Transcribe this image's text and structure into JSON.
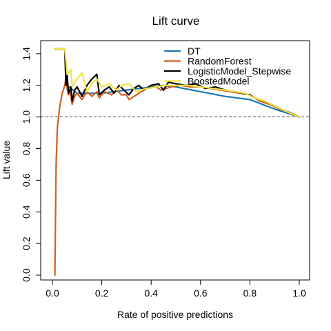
{
  "chart_data": {
    "type": "line",
    "title": "Lift curve",
    "xlabel": "Rate of positive predictions",
    "ylabel": "Lift value",
    "xlim": [
      0.0,
      1.0
    ],
    "ylim": [
      0.0,
      1.43
    ],
    "xticks": [
      0.0,
      0.2,
      0.4,
      0.6,
      0.8,
      1.0
    ],
    "xtick_labels": [
      "0.0",
      "0.2",
      "0.4",
      "0.6",
      "0.8",
      "1.0"
    ],
    "yticks": [
      0.0,
      0.2,
      0.4,
      0.6,
      0.8,
      1.0,
      1.2,
      1.4
    ],
    "ytick_labels": [
      "0.0",
      "0.2",
      "0.4",
      "0.6",
      "0.8",
      "1.0",
      "1.2",
      "1.4"
    ],
    "reference_line": {
      "y": 1.0,
      "style": "dashed",
      "color": "#000000"
    },
    "grid": false,
    "legend_position": "top-right",
    "series": [
      {
        "name": "DT",
        "color": "#1a78b4",
        "points": [
          [
            0.01,
            1.43
          ],
          [
            0.05,
            1.43
          ],
          [
            0.06,
            1.2
          ],
          [
            0.1,
            1.15
          ],
          [
            0.2,
            1.15
          ],
          [
            0.3,
            1.17
          ],
          [
            0.4,
            1.19
          ],
          [
            0.45,
            1.2
          ],
          [
            0.5,
            1.19
          ],
          [
            0.6,
            1.16
          ],
          [
            0.7,
            1.13
          ],
          [
            0.8,
            1.11
          ],
          [
            0.9,
            1.05
          ],
          [
            1.0,
            1.0
          ]
        ]
      },
      {
        "name": "RandomForest",
        "color": "#d45e1c",
        "points": [
          [
            0.01,
            0.0
          ],
          [
            0.015,
            0.7
          ],
          [
            0.02,
            0.93
          ],
          [
            0.03,
            1.07
          ],
          [
            0.04,
            1.15
          ],
          [
            0.05,
            1.2
          ],
          [
            0.055,
            1.25
          ],
          [
            0.06,
            1.18
          ],
          [
            0.065,
            1.14
          ],
          [
            0.07,
            1.17
          ],
          [
            0.08,
            1.08
          ],
          [
            0.09,
            1.13
          ],
          [
            0.1,
            1.15
          ],
          [
            0.12,
            1.11
          ],
          [
            0.14,
            1.16
          ],
          [
            0.16,
            1.13
          ],
          [
            0.18,
            1.16
          ],
          [
            0.19,
            1.12
          ],
          [
            0.21,
            1.16
          ],
          [
            0.24,
            1.14
          ],
          [
            0.26,
            1.17
          ],
          [
            0.28,
            1.14
          ],
          [
            0.3,
            1.14
          ],
          [
            0.31,
            1.11
          ],
          [
            0.34,
            1.14
          ],
          [
            0.38,
            1.18
          ],
          [
            0.42,
            1.19
          ],
          [
            0.44,
            1.17
          ],
          [
            0.48,
            1.19
          ],
          [
            0.52,
            1.2
          ],
          [
            0.56,
            1.19
          ],
          [
            0.6,
            1.19
          ],
          [
            0.64,
            1.18
          ],
          [
            0.68,
            1.17
          ],
          [
            0.72,
            1.16
          ],
          [
            0.76,
            1.15
          ],
          [
            0.8,
            1.14
          ],
          [
            0.84,
            1.1
          ],
          [
            0.88,
            1.08
          ],
          [
            0.92,
            1.05
          ],
          [
            0.96,
            1.03
          ],
          [
            1.0,
            1.0
          ]
        ]
      },
      {
        "name": "LogisticModel_Stepwise",
        "color": "#000000",
        "points": [
          [
            0.01,
            1.43
          ],
          [
            0.05,
            1.43
          ],
          [
            0.055,
            1.2
          ],
          [
            0.06,
            1.26
          ],
          [
            0.065,
            1.15
          ],
          [
            0.075,
            1.19
          ],
          [
            0.08,
            1.1
          ],
          [
            0.09,
            1.17
          ],
          [
            0.1,
            1.19
          ],
          [
            0.12,
            1.13
          ],
          [
            0.14,
            1.2
          ],
          [
            0.16,
            1.24
          ],
          [
            0.18,
            1.27
          ],
          [
            0.19,
            1.14
          ],
          [
            0.21,
            1.17
          ],
          [
            0.23,
            1.19
          ],
          [
            0.25,
            1.15
          ],
          [
            0.27,
            1.2
          ],
          [
            0.29,
            1.17
          ],
          [
            0.31,
            1.14
          ],
          [
            0.33,
            1.18
          ],
          [
            0.35,
            1.2
          ],
          [
            0.37,
            1.17
          ],
          [
            0.4,
            1.2
          ],
          [
            0.43,
            1.21
          ],
          [
            0.45,
            1.17
          ],
          [
            0.47,
            1.22
          ],
          [
            0.5,
            1.21
          ],
          [
            0.54,
            1.2
          ],
          [
            0.58,
            1.21
          ],
          [
            0.62,
            1.18
          ],
          [
            0.66,
            1.19
          ],
          [
            0.7,
            1.17
          ],
          [
            0.74,
            1.16
          ],
          [
            0.77,
            1.15
          ],
          [
            0.8,
            1.14
          ],
          [
            0.82,
            1.12
          ],
          [
            0.86,
            1.1
          ],
          [
            0.9,
            1.07
          ],
          [
            0.94,
            1.04
          ],
          [
            0.97,
            1.02
          ],
          [
            1.0,
            1.0
          ]
        ]
      },
      {
        "name": "BoostedModel",
        "color": "#f0e442",
        "points": [
          [
            0.01,
            1.43
          ],
          [
            0.05,
            1.43
          ],
          [
            0.06,
            1.27
          ],
          [
            0.075,
            1.3
          ],
          [
            0.08,
            1.19
          ],
          [
            0.09,
            1.22
          ],
          [
            0.1,
            1.24
          ],
          [
            0.12,
            1.28
          ],
          [
            0.14,
            1.16
          ],
          [
            0.16,
            1.21
          ],
          [
            0.18,
            1.24
          ],
          [
            0.2,
            1.19
          ],
          [
            0.23,
            1.21
          ],
          [
            0.26,
            1.17
          ],
          [
            0.28,
            1.2
          ],
          [
            0.31,
            1.21
          ],
          [
            0.34,
            1.16
          ],
          [
            0.38,
            1.18
          ],
          [
            0.42,
            1.19
          ],
          [
            0.46,
            1.2
          ],
          [
            0.5,
            1.2
          ],
          [
            0.55,
            1.2
          ],
          [
            0.6,
            1.19
          ],
          [
            0.65,
            1.18
          ],
          [
            0.7,
            1.17
          ],
          [
            0.74,
            1.16
          ],
          [
            0.78,
            1.15
          ],
          [
            0.82,
            1.12
          ],
          [
            0.86,
            1.1
          ],
          [
            0.9,
            1.07
          ],
          [
            0.94,
            1.04
          ],
          [
            1.0,
            1.0
          ]
        ]
      }
    ]
  }
}
